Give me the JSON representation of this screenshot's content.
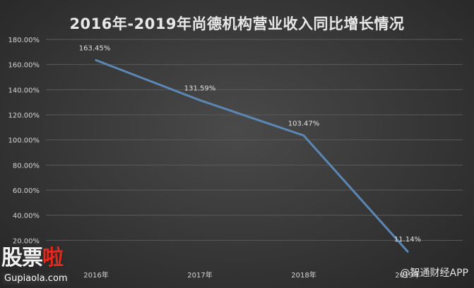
{
  "chart_data": {
    "type": "line",
    "title": "2016年-2019年尚德机构营业收入同比增长情况",
    "categories": [
      "2016年",
      "2017年",
      "2018年",
      "2019年"
    ],
    "values": [
      163.45,
      131.59,
      103.47,
      11.14
    ],
    "data_labels": [
      "163.45%",
      "131.59%",
      "103.47%",
      "11.14%"
    ],
    "y_ticks": [
      "20.00%",
      "40.00%",
      "60.00%",
      "80.00%",
      "100.00%",
      "120.00%",
      "140.00%",
      "160.00%",
      "180.00%"
    ],
    "ylim": [
      0,
      180
    ],
    "grid": true,
    "line_color": "#5b87b5",
    "background_color": "#3d3d3d"
  },
  "watermarks": {
    "left_logo_part1": "股票",
    "left_logo_part2": "啦",
    "left_site": "Gupiaola.com",
    "right_text": "@智通财经APP"
  }
}
